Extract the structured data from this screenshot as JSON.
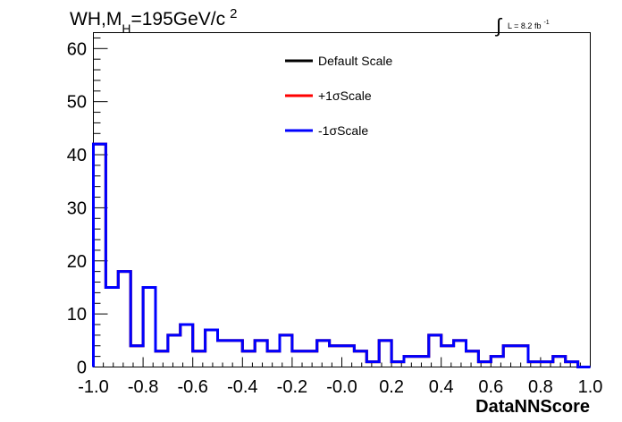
{
  "chart_data": {
    "type": "step-histogram",
    "title": {
      "main": "WH,M",
      "subscript": "H",
      "rest": "=195GeV/c",
      "superscript": "2"
    },
    "luminosity": {
      "integral": "∫",
      "text": "L = 8.2 fb",
      "superscript": "-1"
    },
    "xlabel": "DataNNScore",
    "ylabel": "",
    "xlim": [
      -1.0,
      1.0
    ],
    "ylim": [
      0,
      63
    ],
    "x_ticks": [
      -1.0,
      -0.8,
      -0.6,
      -0.4,
      -0.2,
      0.0,
      0.2,
      0.4,
      0.6,
      0.8,
      1.0
    ],
    "x_tick_labels": [
      "-1.0",
      "-0.8",
      "-0.6",
      "-0.4",
      "-0.2",
      "-0.0",
      "0.2",
      "0.4",
      "0.6",
      "0.8",
      "1.0"
    ],
    "y_ticks": [
      0,
      10,
      20,
      30,
      40,
      50,
      60
    ],
    "y_tick_labels": [
      "0",
      "10",
      "20",
      "30",
      "40",
      "50",
      "60"
    ],
    "bin_edges": [
      -1.0,
      -0.95,
      -0.9,
      -0.85,
      -0.8,
      -0.75,
      -0.7,
      -0.65,
      -0.6,
      -0.55,
      -0.5,
      -0.45,
      -0.4,
      -0.35,
      -0.3,
      -0.25,
      -0.2,
      -0.15,
      -0.1,
      -0.05,
      0.0,
      0.05,
      0.1,
      0.15,
      0.2,
      0.25,
      0.3,
      0.35,
      0.4,
      0.45,
      0.5,
      0.55,
      0.6,
      0.65,
      0.7,
      0.75,
      0.8,
      0.85,
      0.9,
      0.95,
      1.0
    ],
    "legend_position": "top-center",
    "grid": false,
    "series": [
      {
        "name": "Default Scale",
        "color": "#000000",
        "values": [
          42,
          15,
          18,
          4,
          15,
          3,
          6,
          8,
          3,
          7,
          5,
          5,
          3,
          5,
          3,
          6,
          3,
          3,
          5,
          4,
          4,
          3,
          1,
          5,
          1,
          2,
          2,
          6,
          4,
          5,
          3,
          1,
          2,
          4,
          4,
          1,
          1,
          2,
          1,
          0
        ]
      },
      {
        "name": "+1σScale",
        "color": "#ff0000",
        "values": [
          42,
          15,
          18,
          4,
          15,
          3,
          6,
          8,
          3,
          7,
          5,
          5,
          3,
          5,
          3,
          6,
          3,
          3,
          5,
          4,
          4,
          3,
          1,
          5,
          1,
          2,
          2,
          6,
          4,
          5,
          3,
          1,
          2,
          4,
          4,
          1,
          1,
          2,
          1,
          0
        ]
      },
      {
        "name": "-1σScale",
        "color": "#0000ff",
        "values": [
          42,
          15,
          18,
          4,
          15,
          3,
          6,
          8,
          3,
          7,
          5,
          5,
          3,
          5,
          3,
          6,
          3,
          3,
          5,
          4,
          4,
          3,
          1,
          5,
          1,
          2,
          2,
          6,
          4,
          5,
          3,
          1,
          2,
          4,
          4,
          1,
          1,
          2,
          1,
          0
        ]
      }
    ]
  }
}
